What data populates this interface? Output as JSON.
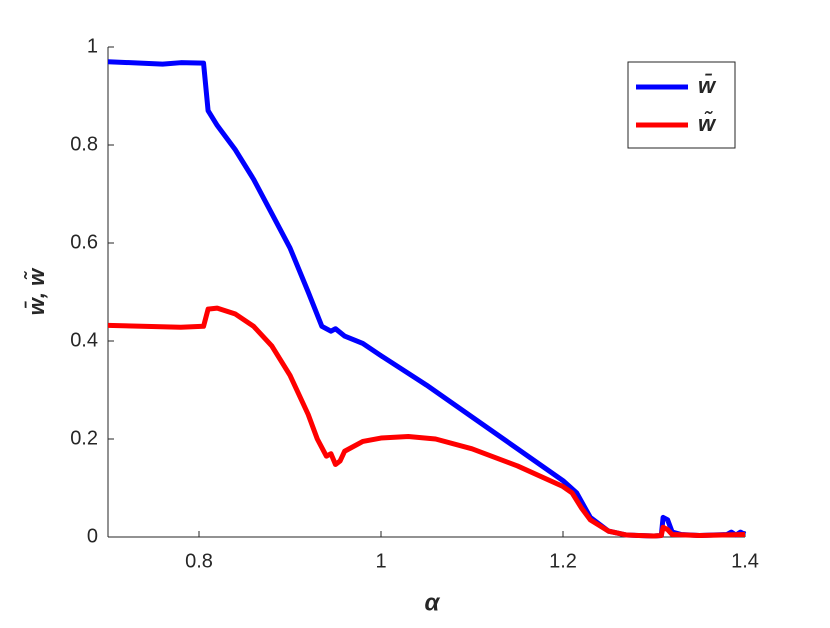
{
  "chart_data": {
    "type": "line",
    "xlabel": "α",
    "ylabel": "w̄, w̃",
    "xlim": [
      0.7,
      1.4
    ],
    "ylim": [
      0,
      1
    ],
    "xticks": [
      0.8,
      1,
      1.2,
      1.4
    ],
    "yticks": [
      0,
      0.2,
      0.4,
      0.6,
      0.8,
      1
    ],
    "legend": "top-right",
    "series": [
      {
        "name": "w̄",
        "color": "#0000ff",
        "x": [
          0.7,
          0.76,
          0.78,
          0.805,
          0.81,
          0.82,
          0.84,
          0.86,
          0.88,
          0.9,
          0.92,
          0.935,
          0.945,
          0.95,
          0.96,
          0.98,
          1.0,
          1.05,
          1.1,
          1.15,
          1.2,
          1.215,
          1.23,
          1.25,
          1.27,
          1.3,
          1.308,
          1.31,
          1.315,
          1.32,
          1.33,
          1.35,
          1.38,
          1.385,
          1.39,
          1.395,
          1.4
        ],
        "values": [
          0.97,
          0.965,
          0.968,
          0.967,
          0.87,
          0.84,
          0.79,
          0.73,
          0.66,
          0.59,
          0.5,
          0.43,
          0.42,
          0.425,
          0.41,
          0.395,
          0.37,
          0.31,
          0.245,
          0.18,
          0.115,
          0.09,
          0.04,
          0.012,
          0.004,
          0.002,
          0.003,
          0.04,
          0.035,
          0.01,
          0.005,
          0.003,
          0.005,
          0.01,
          0.004,
          0.01,
          0.005
        ]
      },
      {
        "name": "w̃",
        "color": "#ff0000",
        "x": [
          0.7,
          0.78,
          0.805,
          0.81,
          0.82,
          0.84,
          0.86,
          0.88,
          0.9,
          0.92,
          0.93,
          0.94,
          0.945,
          0.95,
          0.955,
          0.96,
          0.98,
          1.0,
          1.03,
          1.06,
          1.1,
          1.15,
          1.2,
          1.21,
          1.22,
          1.23,
          1.25,
          1.27,
          1.3,
          1.308,
          1.31,
          1.315,
          1.32,
          1.35,
          1.4
        ],
        "values": [
          0.432,
          0.428,
          0.43,
          0.465,
          0.467,
          0.455,
          0.43,
          0.39,
          0.33,
          0.25,
          0.2,
          0.165,
          0.17,
          0.148,
          0.155,
          0.175,
          0.195,
          0.202,
          0.205,
          0.2,
          0.18,
          0.145,
          0.103,
          0.09,
          0.06,
          0.035,
          0.012,
          0.004,
          0.002,
          0.003,
          0.02,
          0.015,
          0.005,
          0.003,
          0.005
        ]
      }
    ]
  }
}
